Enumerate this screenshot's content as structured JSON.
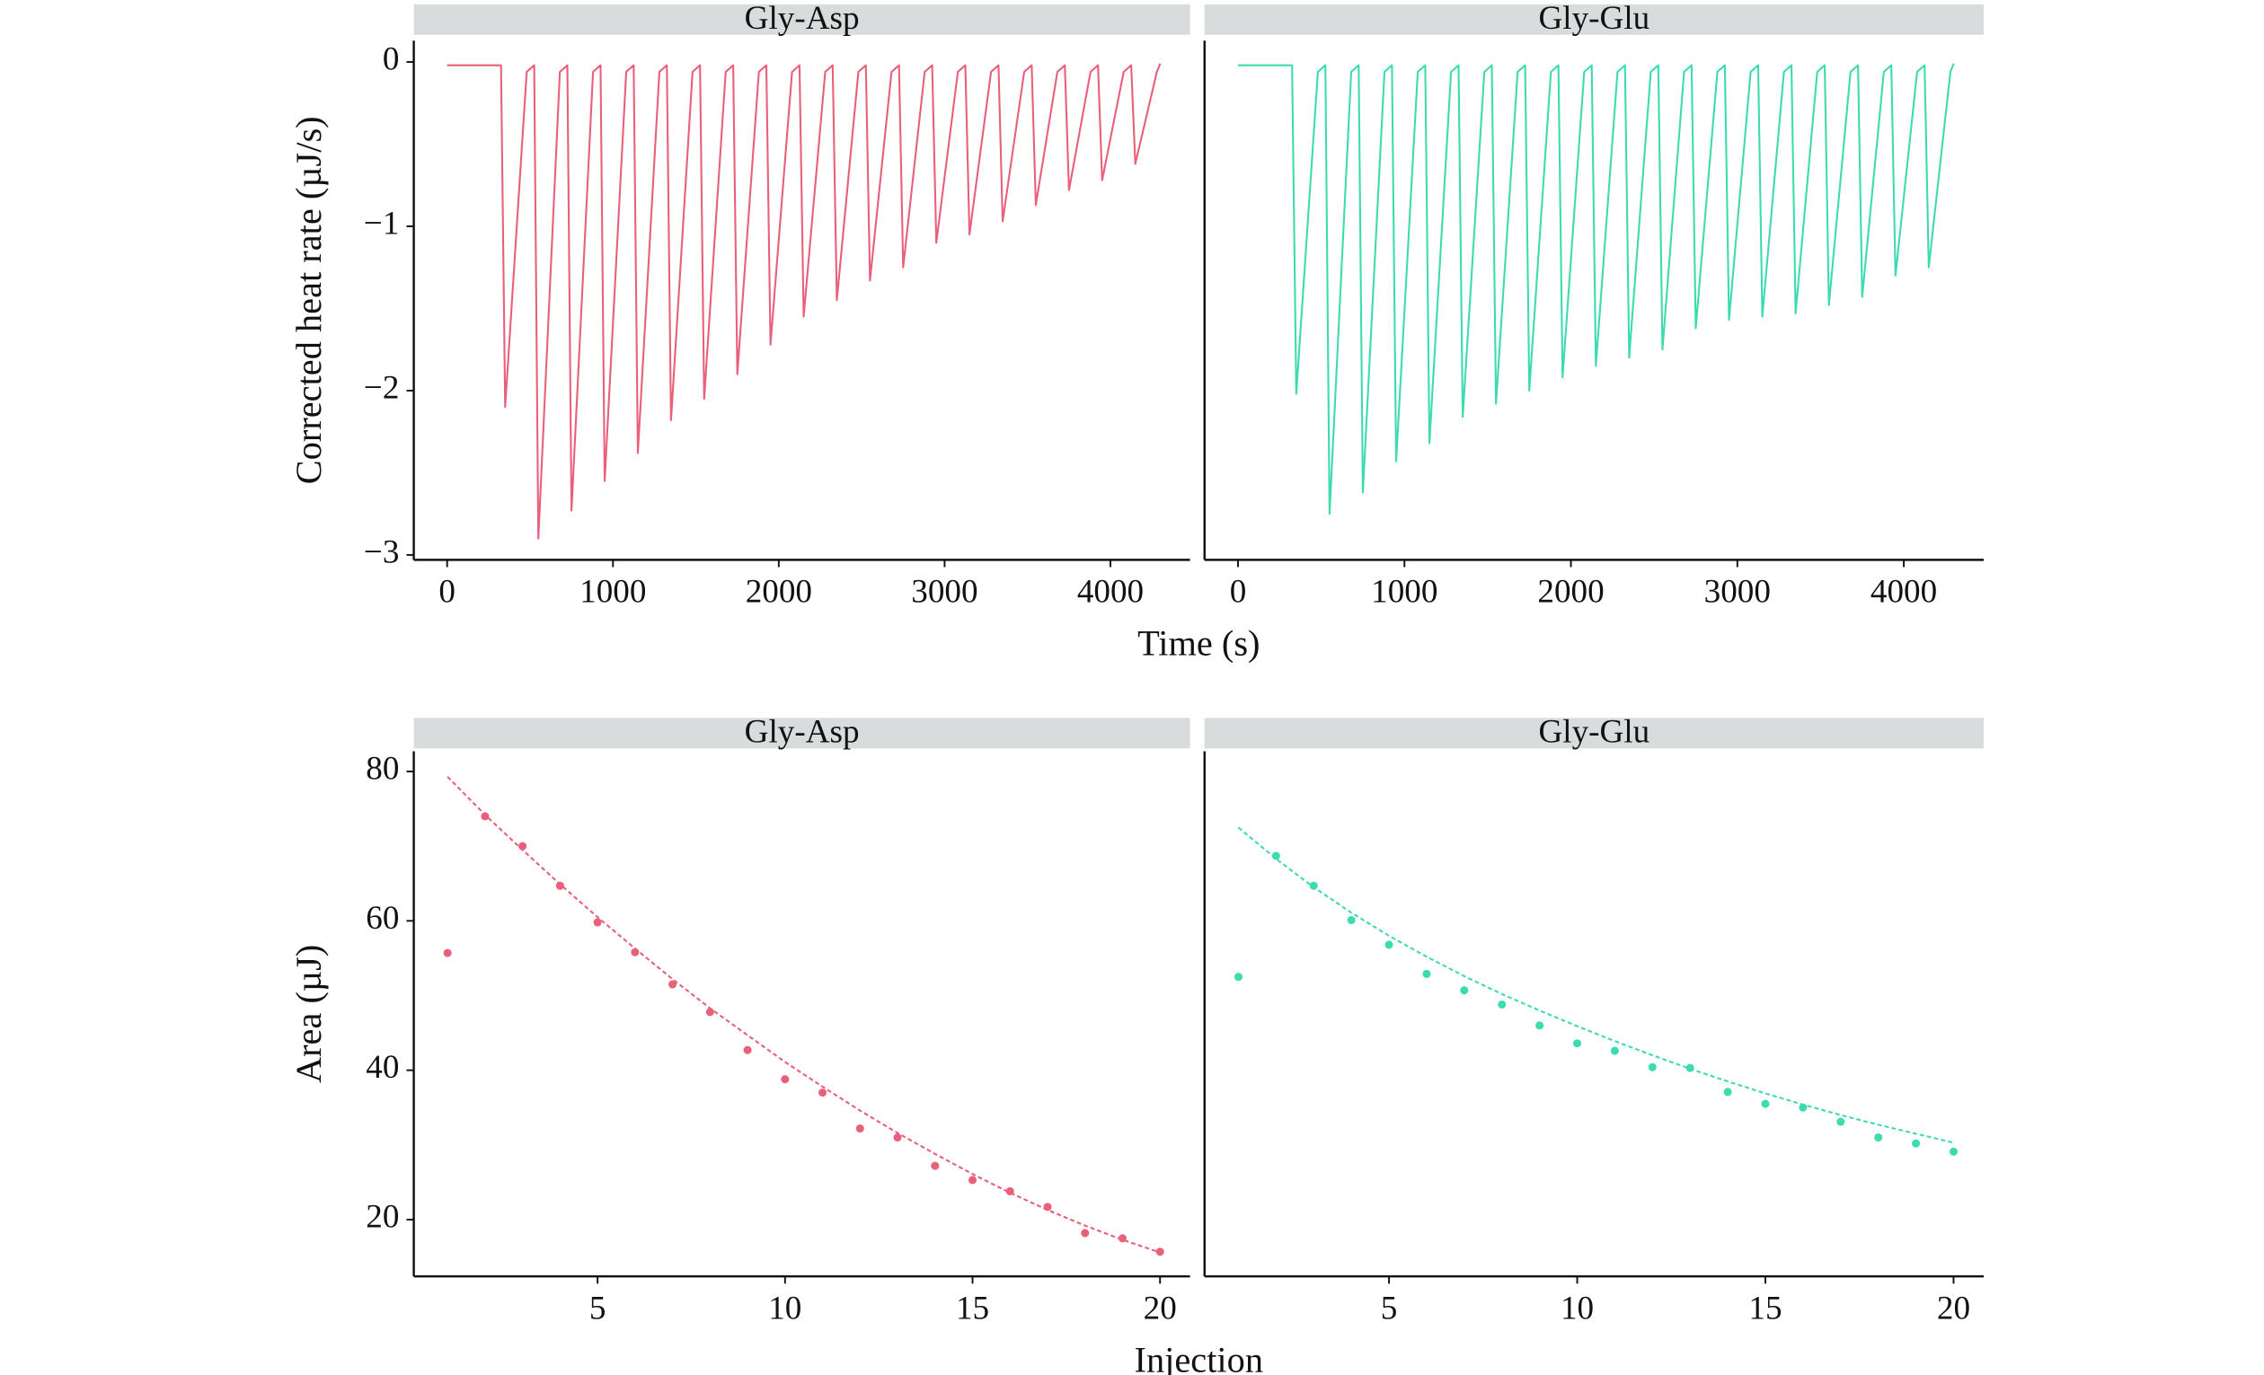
{
  "chart_data": [
    {
      "type": "line",
      "panel": "Gly-Asp",
      "ylabel": "Corrected heat rate (µJ/s)",
      "xlabel": "Time (s)",
      "xlim": [
        -201,
        4480
      ],
      "ylim": [
        -3.03,
        0.13
      ],
      "xticks": [
        0,
        1000,
        2000,
        3000,
        4000
      ],
      "yticks": [
        {
          "value": -3,
          "label": "−3"
        },
        {
          "value": -2,
          "label": "−2"
        },
        {
          "value": -1,
          "label": "−1"
        },
        0
      ],
      "x": [
        0,
        325,
        350,
        480,
        525,
        550,
        680,
        725,
        750,
        880,
        925,
        950,
        1080,
        1125,
        1150,
        1280,
        1325,
        1350,
        1480,
        1525,
        1550,
        1680,
        1725,
        1750,
        1880,
        1925,
        1950,
        2080,
        2125,
        2150,
        2280,
        2325,
        2350,
        2480,
        2525,
        2550,
        2680,
        2725,
        2750,
        2880,
        2925,
        2950,
        3080,
        3125,
        3150,
        3280,
        3325,
        3350,
        3480,
        3525,
        3550,
        3680,
        3725,
        3750,
        3880,
        3925,
        3950,
        4080,
        4125,
        4150,
        4280,
        4300
      ],
      "series": [
        {
          "color": "#e8607a",
          "values": [
            -0.02,
            -0.02,
            -2.1,
            -0.06,
            -0.02,
            -2.9,
            -0.06,
            -0.02,
            -2.73,
            -0.06,
            -0.02,
            -2.55,
            -0.06,
            -0.02,
            -2.38,
            -0.06,
            -0.02,
            -2.18,
            -0.06,
            -0.02,
            -2.05,
            -0.06,
            -0.02,
            -1.9,
            -0.06,
            -0.02,
            -1.72,
            -0.06,
            -0.02,
            -1.55,
            -0.06,
            -0.02,
            -1.45,
            -0.06,
            -0.02,
            -1.33,
            -0.06,
            -0.02,
            -1.25,
            -0.06,
            -0.02,
            -1.1,
            -0.06,
            -0.02,
            -1.05,
            -0.06,
            -0.02,
            -0.97,
            -0.06,
            -0.02,
            -0.87,
            -0.06,
            -0.02,
            -0.78,
            -0.06,
            -0.02,
            -0.72,
            -0.06,
            -0.02,
            -0.62,
            -0.06,
            -0.01
          ]
        }
      ]
    },
    {
      "type": "line",
      "panel": "Gly-Glu",
      "xlim": [
        -201,
        4480
      ],
      "ylim": [
        -3.03,
        0.13
      ],
      "xticks": [
        0,
        1000,
        2000,
        3000,
        4000
      ],
      "x": [
        0,
        325,
        350,
        480,
        525,
        550,
        680,
        725,
        750,
        880,
        925,
        950,
        1080,
        1125,
        1150,
        1280,
        1325,
        1350,
        1480,
        1525,
        1550,
        1680,
        1725,
        1750,
        1880,
        1925,
        1950,
        2080,
        2125,
        2150,
        2280,
        2325,
        2350,
        2480,
        2525,
        2550,
        2680,
        2725,
        2750,
        2880,
        2925,
        2950,
        3080,
        3125,
        3150,
        3280,
        3325,
        3350,
        3480,
        3525,
        3550,
        3680,
        3725,
        3750,
        3880,
        3925,
        3950,
        4080,
        4125,
        4150,
        4280,
        4300
      ],
      "series": [
        {
          "color": "#3ddbb0",
          "values": [
            -0.02,
            -0.02,
            -2.02,
            -0.06,
            -0.02,
            -2.75,
            -0.06,
            -0.02,
            -2.62,
            -0.06,
            -0.02,
            -2.43,
            -0.06,
            -0.02,
            -2.32,
            -0.06,
            -0.02,
            -2.16,
            -0.06,
            -0.02,
            -2.08,
            -0.06,
            -0.02,
            -2.0,
            -0.06,
            -0.02,
            -1.92,
            -0.06,
            -0.02,
            -1.85,
            -0.06,
            -0.02,
            -1.8,
            -0.06,
            -0.02,
            -1.75,
            -0.06,
            -0.02,
            -1.62,
            -0.06,
            -0.02,
            -1.57,
            -0.06,
            -0.02,
            -1.55,
            -0.06,
            -0.02,
            -1.53,
            -0.06,
            -0.02,
            -1.48,
            -0.06,
            -0.02,
            -1.43,
            -0.06,
            -0.02,
            -1.3,
            -0.06,
            -0.02,
            -1.25,
            -0.06,
            -0.01
          ]
        }
      ]
    },
    {
      "type": "scatter",
      "panel": "Gly-Asp",
      "ylabel": "Area (µJ)",
      "xlabel": "Injection",
      "xlim": [
        0.1,
        20.8
      ],
      "ylim": [
        12.4,
        82.7
      ],
      "xticks": [
        5,
        10,
        15,
        20
      ],
      "yticks": [
        20,
        40,
        60,
        80
      ],
      "color": "#e8607a",
      "x": [
        1,
        2,
        3,
        4,
        5,
        6,
        7,
        8,
        9,
        10,
        11,
        12,
        13,
        14,
        15,
        16,
        17,
        18,
        19,
        20
      ],
      "points": [
        55.7,
        74,
        70,
        64.7,
        59.8,
        55.8,
        51.5,
        47.8,
        42.7,
        38.8,
        37,
        32.2,
        31,
        27.2,
        25.3,
        23.8,
        21.7,
        18.2,
        17.5,
        15.7
      ],
      "fit": [
        79.3,
        74.2,
        69.5,
        64.9,
        60.5,
        56.3,
        52.2,
        48.3,
        44.7,
        41.1,
        37.8,
        34.6,
        31.6,
        28.8,
        26.1,
        23.6,
        21.3,
        19.2,
        17.3,
        15.6
      ]
    },
    {
      "type": "scatter",
      "panel": "Gly-Glu",
      "xlim": [
        0.1,
        20.8
      ],
      "ylim": [
        12.4,
        82.7
      ],
      "xticks": [
        5,
        10,
        15,
        20
      ],
      "color": "#3ddbb0",
      "x": [
        1,
        2,
        3,
        4,
        5,
        6,
        7,
        8,
        9,
        10,
        11,
        12,
        13,
        14,
        15,
        16,
        17,
        18,
        19,
        20
      ],
      "points": [
        52.5,
        68.7,
        64.7,
        60.1,
        56.8,
        52.9,
        50.7,
        48.8,
        46,
        43.6,
        42.6,
        40.4,
        40.3,
        37.1,
        35.5,
        35,
        33.1,
        31,
        30.2,
        29.1
      ],
      "fit": [
        72.5,
        68.3,
        64.5,
        61.1,
        58,
        55.2,
        52.6,
        50.2,
        48,
        45.9,
        43.9,
        42,
        40.2,
        38.5,
        36.9,
        35.4,
        34,
        32.7,
        31.5,
        30.3
      ]
    }
  ]
}
